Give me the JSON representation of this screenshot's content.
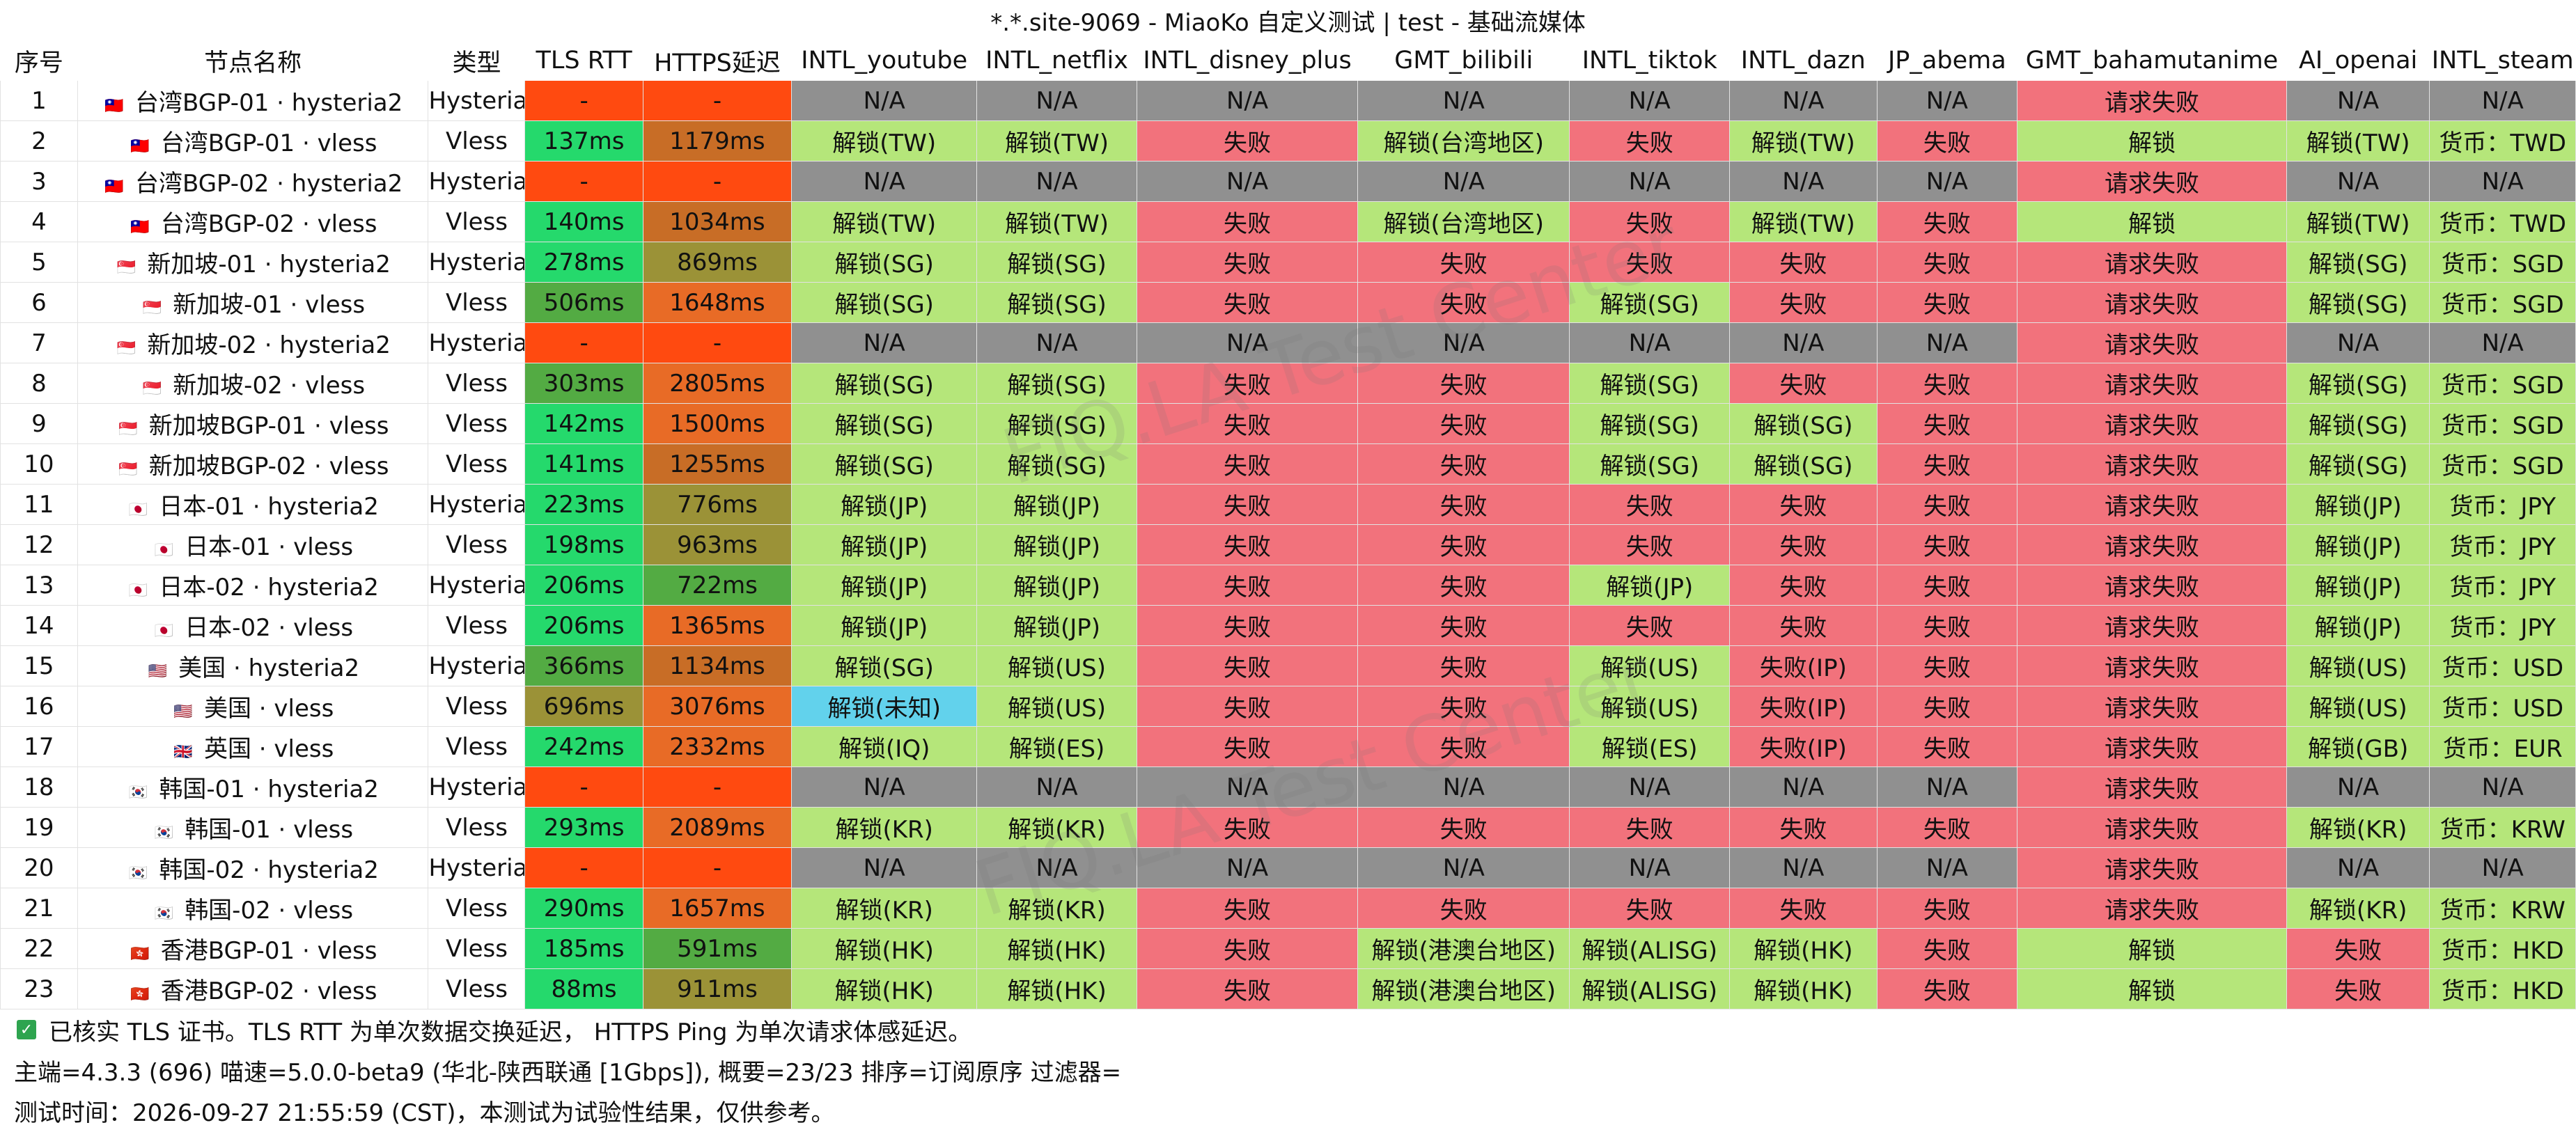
{
  "window": {
    "title": "*.*.site-9069 - MiaoKo 自定义测试 | test - 基础流媒体"
  },
  "table": {
    "columns": [
      "序号",
      "节点名称",
      "类型",
      "TLS RTT",
      "HTTPS延迟",
      "INTL_youtube",
      "INTL_netflix",
      "INTL_disney_plus",
      "GMT_bilibili",
      "INTL_tiktok",
      "INTL_dazn",
      "JP_abema",
      "GMT_bahamutanime",
      "AI_openai",
      "INTL_steam"
    ],
    "rows": [
      {
        "num": "1",
        "flag": "TW",
        "flag_icon": "flag-tw-icon",
        "name": "台湾BGP-01 · hysteria2",
        "type": "Hysteria2",
        "tls": "-",
        "https": "-",
        "youtube": "N/A",
        "netflix": "N/A",
        "disney": "N/A",
        "bilibili": "N/A",
        "tiktok": "N/A",
        "dazn": "N/A",
        "abema": "N/A",
        "bahamut": "请求失败",
        "openai": "N/A",
        "steam": "N/A"
      },
      {
        "num": "2",
        "flag": "TW",
        "flag_icon": "flag-tw-icon",
        "name": "台湾BGP-01 · vless",
        "type": "Vless",
        "tls": "137ms",
        "https": "1179ms",
        "youtube": "解锁(TW)",
        "netflix": "解锁(TW)",
        "disney": "失败",
        "bilibili": "解锁(台湾地区)",
        "tiktok": "失败",
        "dazn": "解锁(TW)",
        "abema": "失败",
        "bahamut": "解锁",
        "openai": "解锁(TW)",
        "steam": "货币：TWD"
      },
      {
        "num": "3",
        "flag": "TW",
        "flag_icon": "flag-tw-icon",
        "name": "台湾BGP-02 · hysteria2",
        "type": "Hysteria2",
        "tls": "-",
        "https": "-",
        "youtube": "N/A",
        "netflix": "N/A",
        "disney": "N/A",
        "bilibili": "N/A",
        "tiktok": "N/A",
        "dazn": "N/A",
        "abema": "N/A",
        "bahamut": "请求失败",
        "openai": "N/A",
        "steam": "N/A"
      },
      {
        "num": "4",
        "flag": "TW",
        "flag_icon": "flag-tw-icon",
        "name": "台湾BGP-02 · vless",
        "type": "Vless",
        "tls": "140ms",
        "https": "1034ms",
        "youtube": "解锁(TW)",
        "netflix": "解锁(TW)",
        "disney": "失败",
        "bilibili": "解锁(台湾地区)",
        "tiktok": "失败",
        "dazn": "解锁(TW)",
        "abema": "失败",
        "bahamut": "解锁",
        "openai": "解锁(TW)",
        "steam": "货币：TWD"
      },
      {
        "num": "5",
        "flag": "SG",
        "flag_icon": "flag-sg-icon",
        "name": "新加坡-01 · hysteria2",
        "type": "Hysteria2",
        "tls": "278ms",
        "https": "869ms",
        "youtube": "解锁(SG)",
        "netflix": "解锁(SG)",
        "disney": "失败",
        "bilibili": "失败",
        "tiktok": "失败",
        "dazn": "失败",
        "abema": "失败",
        "bahamut": "请求失败",
        "openai": "解锁(SG)",
        "steam": "货币：SGD"
      },
      {
        "num": "6",
        "flag": "SG",
        "flag_icon": "flag-sg-icon",
        "name": "新加坡-01 · vless",
        "type": "Vless",
        "tls": "506ms",
        "https": "1648ms",
        "youtube": "解锁(SG)",
        "netflix": "解锁(SG)",
        "disney": "失败",
        "bilibili": "失败",
        "tiktok": "解锁(SG)",
        "dazn": "失败",
        "abema": "失败",
        "bahamut": "请求失败",
        "openai": "解锁(SG)",
        "steam": "货币：SGD"
      },
      {
        "num": "7",
        "flag": "SG",
        "flag_icon": "flag-sg-icon",
        "name": "新加坡-02 · hysteria2",
        "type": "Hysteria2",
        "tls": "-",
        "https": "-",
        "youtube": "N/A",
        "netflix": "N/A",
        "disney": "N/A",
        "bilibili": "N/A",
        "tiktok": "N/A",
        "dazn": "N/A",
        "abema": "N/A",
        "bahamut": "请求失败",
        "openai": "N/A",
        "steam": "N/A"
      },
      {
        "num": "8",
        "flag": "SG",
        "flag_icon": "flag-sg-icon",
        "name": "新加坡-02 · vless",
        "type": "Vless",
        "tls": "303ms",
        "https": "2805ms",
        "youtube": "解锁(SG)",
        "netflix": "解锁(SG)",
        "disney": "失败",
        "bilibili": "失败",
        "tiktok": "解锁(SG)",
        "dazn": "失败",
        "abema": "失败",
        "bahamut": "请求失败",
        "openai": "解锁(SG)",
        "steam": "货币：SGD"
      },
      {
        "num": "9",
        "flag": "SG",
        "flag_icon": "flag-sg-icon",
        "name": "新加坡BGP-01 · vless",
        "type": "Vless",
        "tls": "142ms",
        "https": "1500ms",
        "youtube": "解锁(SG)",
        "netflix": "解锁(SG)",
        "disney": "失败",
        "bilibili": "失败",
        "tiktok": "解锁(SG)",
        "dazn": "解锁(SG)",
        "abema": "失败",
        "bahamut": "请求失败",
        "openai": "解锁(SG)",
        "steam": "货币：SGD"
      },
      {
        "num": "10",
        "flag": "SG",
        "flag_icon": "flag-sg-icon",
        "name": "新加坡BGP-02 · vless",
        "type": "Vless",
        "tls": "141ms",
        "https": "1255ms",
        "youtube": "解锁(SG)",
        "netflix": "解锁(SG)",
        "disney": "失败",
        "bilibili": "失败",
        "tiktok": "解锁(SG)",
        "dazn": "解锁(SG)",
        "abema": "失败",
        "bahamut": "请求失败",
        "openai": "解锁(SG)",
        "steam": "货币：SGD"
      },
      {
        "num": "11",
        "flag": "JP",
        "flag_icon": "flag-jp-icon",
        "name": "日本-01 · hysteria2",
        "type": "Hysteria2",
        "tls": "223ms",
        "https": "776ms",
        "youtube": "解锁(JP)",
        "netflix": "解锁(JP)",
        "disney": "失败",
        "bilibili": "失败",
        "tiktok": "失败",
        "dazn": "失败",
        "abema": "失败",
        "bahamut": "请求失败",
        "openai": "解锁(JP)",
        "steam": "货币：JPY"
      },
      {
        "num": "12",
        "flag": "JP",
        "flag_icon": "flag-jp-icon",
        "name": "日本-01 · vless",
        "type": "Vless",
        "tls": "198ms",
        "https": "963ms",
        "youtube": "解锁(JP)",
        "netflix": "解锁(JP)",
        "disney": "失败",
        "bilibili": "失败",
        "tiktok": "失败",
        "dazn": "失败",
        "abema": "失败",
        "bahamut": "请求失败",
        "openai": "解锁(JP)",
        "steam": "货币：JPY"
      },
      {
        "num": "13",
        "flag": "JP",
        "flag_icon": "flag-jp-icon",
        "name": "日本-02 · hysteria2",
        "type": "Hysteria2",
        "tls": "206ms",
        "https": "722ms",
        "youtube": "解锁(JP)",
        "netflix": "解锁(JP)",
        "disney": "失败",
        "bilibili": "失败",
        "tiktok": "解锁(JP)",
        "dazn": "失败",
        "abema": "失败",
        "bahamut": "请求失败",
        "openai": "解锁(JP)",
        "steam": "货币：JPY"
      },
      {
        "num": "14",
        "flag": "JP",
        "flag_icon": "flag-jp-icon",
        "name": "日本-02 · vless",
        "type": "Vless",
        "tls": "206ms",
        "https": "1365ms",
        "youtube": "解锁(JP)",
        "netflix": "解锁(JP)",
        "disney": "失败",
        "bilibili": "失败",
        "tiktok": "失败",
        "dazn": "失败",
        "abema": "失败",
        "bahamut": "请求失败",
        "openai": "解锁(JP)",
        "steam": "货币：JPY"
      },
      {
        "num": "15",
        "flag": "US",
        "flag_icon": "flag-us-icon",
        "name": "美国 · hysteria2",
        "type": "Hysteria2",
        "tls": "366ms",
        "https": "1134ms",
        "youtube": "解锁(SG)",
        "netflix": "解锁(US)",
        "disney": "失败",
        "bilibili": "失败",
        "tiktok": "解锁(US)",
        "dazn": "失败(IP)",
        "abema": "失败",
        "bahamut": "请求失败",
        "openai": "解锁(US)",
        "steam": "货币：USD"
      },
      {
        "num": "16",
        "flag": "US",
        "flag_icon": "flag-us-icon",
        "name": "美国 · vless",
        "type": "Vless",
        "tls": "696ms",
        "https": "3076ms",
        "youtube": "解锁(未知)",
        "netflix": "解锁(US)",
        "disney": "失败",
        "bilibili": "失败",
        "tiktok": "解锁(US)",
        "dazn": "失败(IP)",
        "abema": "失败",
        "bahamut": "请求失败",
        "openai": "解锁(US)",
        "steam": "货币：USD"
      },
      {
        "num": "17",
        "flag": "GB",
        "flag_icon": "flag-gb-icon",
        "name": "英国 · vless",
        "type": "Vless",
        "tls": "242ms",
        "https": "2332ms",
        "youtube": "解锁(IQ)",
        "netflix": "解锁(ES)",
        "disney": "失败",
        "bilibili": "失败",
        "tiktok": "解锁(ES)",
        "dazn": "失败(IP)",
        "abema": "失败",
        "bahamut": "请求失败",
        "openai": "解锁(GB)",
        "steam": "货币：EUR"
      },
      {
        "num": "18",
        "flag": "KR",
        "flag_icon": "flag-kr-icon",
        "name": "韩国-01 · hysteria2",
        "type": "Hysteria2",
        "tls": "-",
        "https": "-",
        "youtube": "N/A",
        "netflix": "N/A",
        "disney": "N/A",
        "bilibili": "N/A",
        "tiktok": "N/A",
        "dazn": "N/A",
        "abema": "N/A",
        "bahamut": "请求失败",
        "openai": "N/A",
        "steam": "N/A"
      },
      {
        "num": "19",
        "flag": "KR",
        "flag_icon": "flag-kr-icon",
        "name": "韩国-01 · vless",
        "type": "Vless",
        "tls": "293ms",
        "https": "2089ms",
        "youtube": "解锁(KR)",
        "netflix": "解锁(KR)",
        "disney": "失败",
        "bilibili": "失败",
        "tiktok": "失败",
        "dazn": "失败",
        "abema": "失败",
        "bahamut": "请求失败",
        "openai": "解锁(KR)",
        "steam": "货币：KRW"
      },
      {
        "num": "20",
        "flag": "KR",
        "flag_icon": "flag-kr-icon",
        "name": "韩国-02 · hysteria2",
        "type": "Hysteria2",
        "tls": "-",
        "https": "-",
        "youtube": "N/A",
        "netflix": "N/A",
        "disney": "N/A",
        "bilibili": "N/A",
        "tiktok": "N/A",
        "dazn": "N/A",
        "abema": "N/A",
        "bahamut": "请求失败",
        "openai": "N/A",
        "steam": "N/A"
      },
      {
        "num": "21",
        "flag": "KR",
        "flag_icon": "flag-kr-icon",
        "name": "韩国-02 · vless",
        "type": "Vless",
        "tls": "290ms",
        "https": "1657ms",
        "youtube": "解锁(KR)",
        "netflix": "解锁(KR)",
        "disney": "失败",
        "bilibili": "失败",
        "tiktok": "失败",
        "dazn": "失败",
        "abema": "失败",
        "bahamut": "请求失败",
        "openai": "解锁(KR)",
        "steam": "货币：KRW"
      },
      {
        "num": "22",
        "flag": "HK",
        "flag_icon": "flag-hk-icon",
        "name": "香港BGP-01 · vless",
        "type": "Vless",
        "tls": "185ms",
        "https": "591ms",
        "youtube": "解锁(HK)",
        "netflix": "解锁(HK)",
        "disney": "失败",
        "bilibili": "解锁(港澳台地区)",
        "tiktok": "解锁(ALISG)",
        "dazn": "解锁(HK)",
        "abema": "失败",
        "bahamut": "解锁",
        "openai": "失败",
        "steam": "货币：HKD"
      },
      {
        "num": "23",
        "flag": "HK",
        "flag_icon": "flag-hk-icon",
        "name": "香港BGP-02 · vless",
        "type": "Vless",
        "tls": "88ms",
        "https": "911ms",
        "youtube": "解锁(HK)",
        "netflix": "解锁(HK)",
        "disney": "失败",
        "bilibili": "解锁(港澳台地区)",
        "tiktok": "解锁(ALISG)",
        "dazn": "解锁(HK)",
        "abema": "失败",
        "bahamut": "解锁",
        "openai": "失败",
        "steam": "货币：HKD"
      }
    ]
  },
  "footer": {
    "line1": "已核实 TLS 证书。TLS RTT 为单次数据交换延迟， HTTPS Ping 为单次请求体感延迟。",
    "line2": "主端=4.3.3 (696) 喵速=5.0.0-beta9 (华北-陕西联通 [1Gbps]), 概要=23/23 排序=订阅原序 过滤器=",
    "line3": "测试时间：2026-09-27 21:55:59 (CST)，本测试为试验性结果，仅供参考。"
  },
  "watermark": "FIQ.LA Test Center",
  "colors": {
    "unlock": "#b5e67a",
    "fail": "#f2727c",
    "na": "#909090",
    "unknown": "#62d2ec",
    "fast": "#25d96c",
    "medium": "#53ab43",
    "slow": "#c86d26",
    "none": "#ff4a10"
  }
}
